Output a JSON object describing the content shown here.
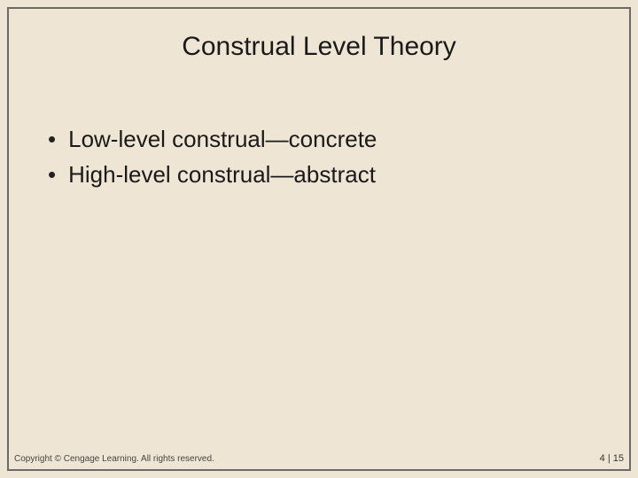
{
  "slide": {
    "background_color": "#efe5d4",
    "border_color": "#6a6a6a",
    "title": "Construal Level Theory",
    "title_fontsize": 30,
    "title_color": "#1a1a1a",
    "bullets": [
      {
        "marker": "•",
        "text": "Low-level construal—concrete"
      },
      {
        "marker": "•",
        "text": "High-level construal—abstract"
      }
    ],
    "bullet_fontsize": 26,
    "bullet_color": "#1a1a1a",
    "footer_left": "Copyright © Cengage Learning. All rights reserved.",
    "footer_right": "4 | 15",
    "footer_fontsize": 10
  }
}
